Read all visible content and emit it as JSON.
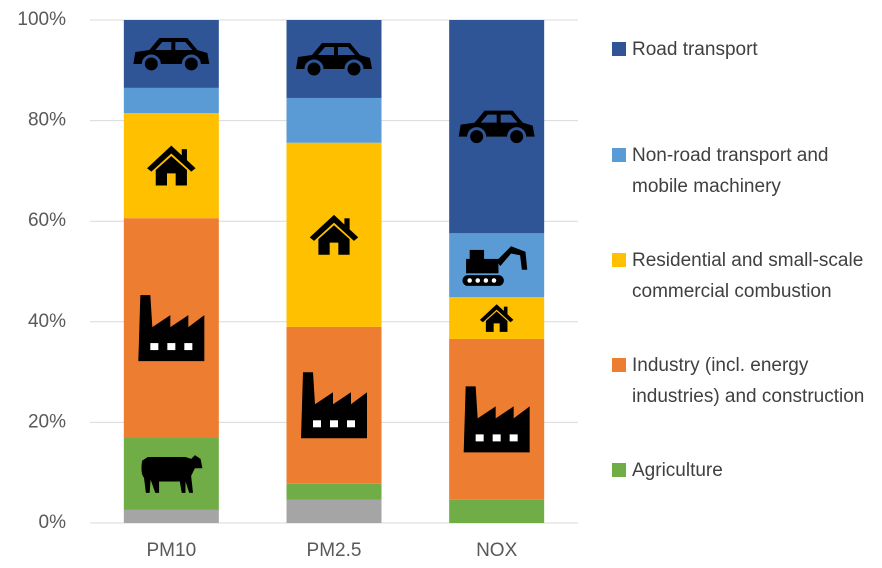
{
  "chart_data": {
    "type": "stacked_bar",
    "categories": [
      "PM10",
      "PM2.5",
      "NOX"
    ],
    "series": [
      {
        "color": "#a5a5a5",
        "values": [
          2.6,
          4.6,
          0
        ]
      },
      {
        "name": "Agriculture",
        "color": "#70ad47",
        "values": [
          14.3,
          3.2,
          4.6
        ]
      },
      {
        "name": "Industry (incl. energy industries) and construction",
        "color": "#ed7d31",
        "values": [
          43.7,
          31.2,
          32.0
        ]
      },
      {
        "name": "Residential and small-scale commercial combustion",
        "color": "#ffc000",
        "values": [
          20.9,
          36.6,
          8.3
        ]
      },
      {
        "name": "Non-road transport and mobile machinery",
        "color": "#5b9bd5",
        "values": [
          5.0,
          8.9,
          12.7
        ]
      },
      {
        "name": "Road transport",
        "color": "#2f5597",
        "values": [
          13.5,
          15.5,
          42.4
        ]
      }
    ],
    "ylim": [
      0,
      100
    ],
    "yticks": [
      {
        "value": 0,
        "label": "0%"
      },
      {
        "value": 20,
        "label": "20%"
      },
      {
        "value": 40,
        "label": "40%"
      },
      {
        "value": 60,
        "label": "60%"
      },
      {
        "value": 80,
        "label": "80%"
      },
      {
        "value": 100,
        "label": "100%"
      }
    ],
    "grid": true,
    "legend": "right"
  }
}
